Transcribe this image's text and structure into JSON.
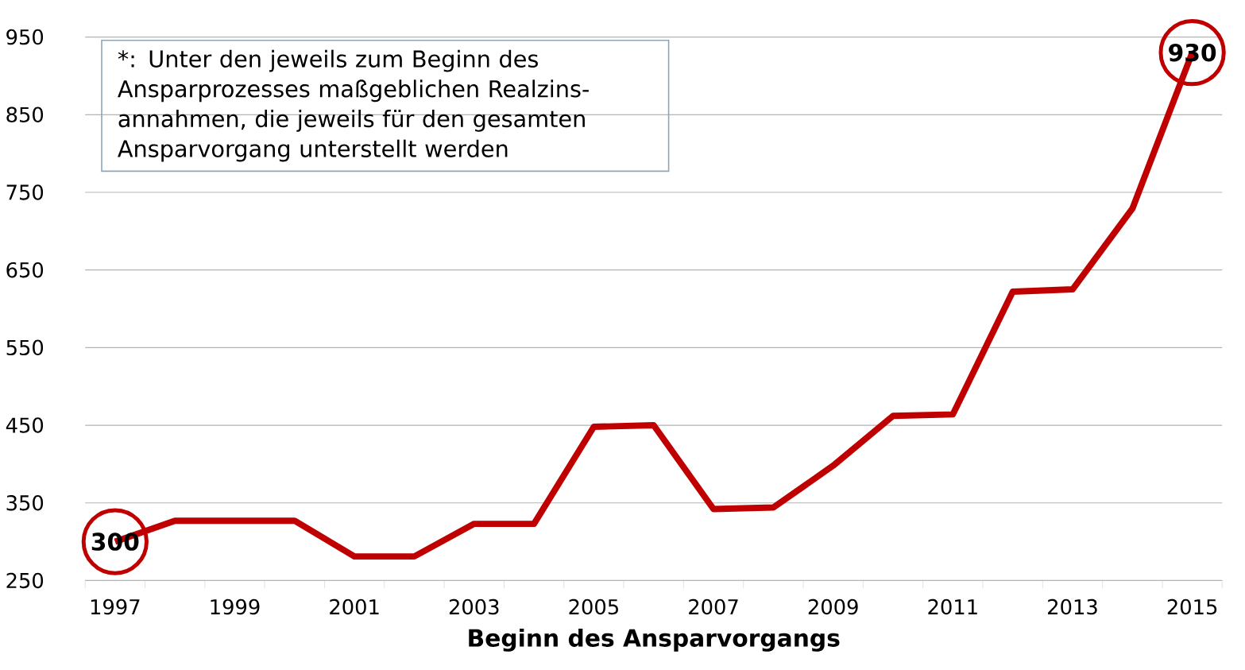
{
  "chart_data": {
    "type": "line",
    "xlabel": "Beginn des Ansparvorgangs",
    "annotations": [
      "*: Unter den jeweils zum Beginn des Ansparprozesses maßgeblichen Realzins-annahmen, die jeweils für den gesamten Ansparvorgang unterstellt werden"
    ],
    "categories": [
      "1997",
      null,
      "1999",
      null,
      "2001",
      null,
      "2003",
      null,
      "2005",
      null,
      "2007",
      null,
      "2009",
      null,
      "2011",
      null,
      "2013",
      null,
      "2015"
    ],
    "values": [
      300,
      327,
      327,
      327,
      281,
      281,
      323,
      323,
      448,
      450,
      342,
      344,
      398,
      462,
      464,
      622,
      625,
      729,
      930
    ],
    "value_labels": [
      "300",
      null,
      null,
      null,
      null,
      null,
      null,
      null,
      null,
      null,
      null,
      null,
      null,
      null,
      null,
      null,
      null,
      null,
      "930"
    ],
    "color": "#c00000",
    "line_style": "solid",
    "ylim": [
      250,
      950
    ],
    "yticks": [
      250,
      350,
      450,
      550,
      650,
      750,
      850,
      950
    ],
    "grid": "y"
  }
}
